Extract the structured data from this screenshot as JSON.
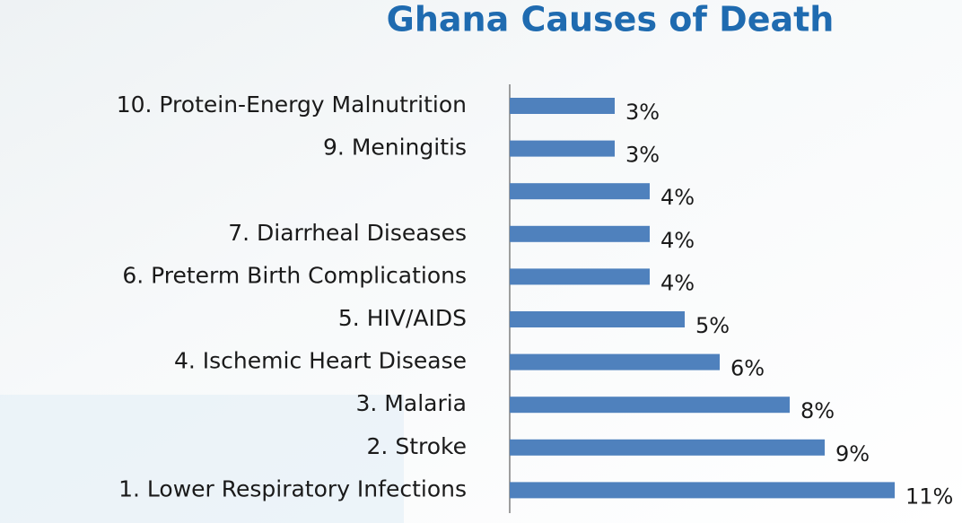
{
  "chart_data": {
    "type": "bar",
    "orientation": "horizontal",
    "title": "Ghana Causes of Death",
    "categories": [
      "10. Protein-Energy Malnutrition",
      "9. Meningitis",
      null,
      "7. Diarrheal Diseases",
      "6. Preterm Birth Complications",
      "5. HIV/AIDS",
      "4. Ischemic Heart Disease",
      "3. Malaria",
      "2. Stroke",
      "1. Lower Respiratory Infections"
    ],
    "values": [
      3,
      3,
      4,
      4,
      4,
      5,
      6,
      8,
      9,
      11
    ],
    "value_labels": [
      "3%",
      "3%",
      "4%",
      "4%",
      "4%",
      "5%",
      "6%",
      "8%",
      "9%",
      "11%"
    ],
    "color": "#4f81bd"
  }
}
